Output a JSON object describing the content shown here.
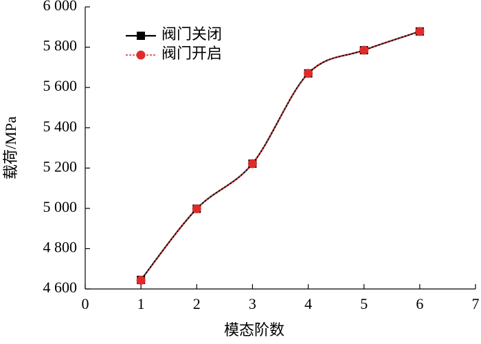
{
  "chart_data": {
    "type": "line",
    "x_label": "模态阶数",
    "y_label": "载荷/MPa",
    "x": [
      1,
      2,
      3,
      4,
      5,
      6
    ],
    "series": [
      {
        "name": "阀门关闭",
        "color": "#000000",
        "marker": "square",
        "line_style": "solid",
        "values": [
          4645,
          4998,
          5222,
          5670,
          5785,
          5878
        ]
      },
      {
        "name": "阀门开启",
        "color": "#e02b2b",
        "marker": "circle",
        "line_style": "dotted",
        "values": [
          4643,
          4998,
          5222,
          5670,
          5785,
          5878
        ]
      }
    ],
    "xlim": [
      0,
      7
    ],
    "xticks": [
      0,
      1,
      2,
      3,
      4,
      5,
      6,
      7
    ],
    "ylim": [
      4600,
      6000
    ],
    "yticks": [
      {
        "value": 4600,
        "label": "4 600"
      },
      {
        "value": 4800,
        "label": "4 800"
      },
      {
        "value": 5000,
        "label": "5 000"
      },
      {
        "value": 5200,
        "label": "5 200"
      },
      {
        "value": 5400,
        "label": "5 400"
      },
      {
        "value": 5600,
        "label": "5 600"
      },
      {
        "value": 5800,
        "label": "5 800"
      },
      {
        "value": 6000,
        "label": "6 000"
      }
    ],
    "legend": "upper-left"
  }
}
